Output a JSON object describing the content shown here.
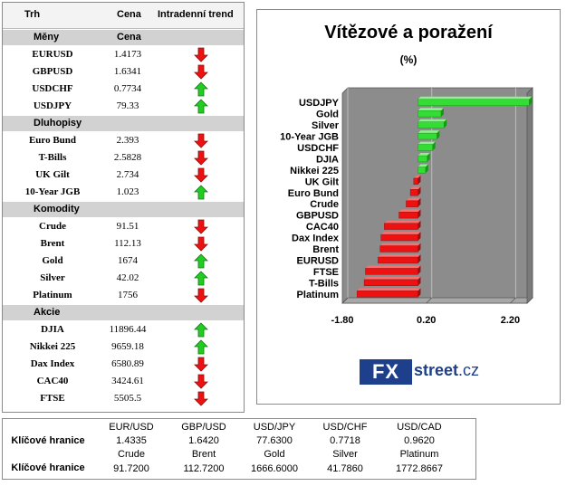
{
  "table": {
    "headers": {
      "market": "Trh",
      "price": "Cena",
      "trend": "Intradenní trend"
    },
    "sections": [
      {
        "title": "Měny",
        "price_header": "Cena",
        "rows": [
          {
            "name": "EURUSD",
            "value": "1.4173",
            "trend": "down"
          },
          {
            "name": "GBPUSD",
            "value": "1.6341",
            "trend": "down"
          },
          {
            "name": "USDCHF",
            "value": "0.7734",
            "trend": "up"
          },
          {
            "name": "USDJPY",
            "value": "79.33",
            "trend": "up"
          }
        ]
      },
      {
        "title": "Dluhopisy",
        "price_header": "",
        "rows": [
          {
            "name": "Euro Bund",
            "value": "2.393",
            "trend": "down"
          },
          {
            "name": "T-Bills",
            "value": "2.5828",
            "trend": "down"
          },
          {
            "name": "UK Gilt",
            "value": "2.734",
            "trend": "down"
          },
          {
            "name": "10-Year JGB",
            "value": "1.023",
            "trend": "up"
          }
        ]
      },
      {
        "title": "Komodity",
        "price_header": "",
        "rows": [
          {
            "name": "Crude",
            "value": "91.51",
            "trend": "down"
          },
          {
            "name": "Brent",
            "value": "112.13",
            "trend": "down"
          },
          {
            "name": "Gold",
            "value": "1674",
            "trend": "up"
          },
          {
            "name": "Silver",
            "value": "42.02",
            "trend": "up"
          },
          {
            "name": "Platinum",
            "value": "1756",
            "trend": "down"
          }
        ]
      },
      {
        "title": "Akcie",
        "price_header": "",
        "rows": [
          {
            "name": "DJIA",
            "value": "11896.44",
            "trend": "up"
          },
          {
            "name": "Nikkei 225",
            "value": "9659.18",
            "trend": "up"
          },
          {
            "name": "Dax Index",
            "value": "6580.89",
            "trend": "down"
          },
          {
            "name": "CAC40",
            "value": "3424.61",
            "trend": "down"
          },
          {
            "name": "FTSE",
            "value": "5505.5",
            "trend": "down"
          }
        ]
      }
    ]
  },
  "chart_data": {
    "type": "bar",
    "orientation": "horizontal",
    "title": "Vítězové a poražení",
    "subtitle": "(%)",
    "categories": [
      "USDJPY",
      "Gold",
      "Silver",
      "10-Year JGB",
      "USDCHF",
      "DJIA",
      "Nikkei 225",
      "UK Gilt",
      "Euro Bund",
      "Crude",
      "GBPUSD",
      "CAC40",
      "Dax Index",
      "Brent",
      "EURUSD",
      "FTSE",
      "T-Bills",
      "Platinum"
    ],
    "values": [
      2.65,
      0.55,
      0.62,
      0.45,
      0.35,
      0.22,
      0.18,
      -0.1,
      -0.18,
      -0.28,
      -0.45,
      -0.8,
      -0.88,
      -0.9,
      -0.95,
      -1.25,
      -1.28,
      -1.45
    ],
    "xlim": [
      -1.8,
      2.6
    ],
    "xticks": [
      "-1.80",
      "0.20",
      "2.20"
    ],
    "grid": true,
    "colors": {
      "positive": "#33dd33",
      "negative": "#ee1111",
      "plot_bg": "#8c8c8c",
      "floor": "#a8a8a8"
    }
  },
  "logo": {
    "fx": "FX",
    "street": "street",
    "tld": ".cz"
  },
  "colors": {
    "up_arrow": "#22cc22",
    "down_arrow": "#ee1111",
    "section_bg": "#d2d2d2"
  },
  "levels": {
    "row1_label": "Klíčové hranice",
    "row2_label": "Klíčové hranice",
    "fx": [
      {
        "name": "EUR/USD",
        "value": "1.4335"
      },
      {
        "name": "GBP/USD",
        "value": "1.6420"
      },
      {
        "name": "USD/JPY",
        "value": "77.6300"
      },
      {
        "name": "USD/CHF",
        "value": "0.7718"
      },
      {
        "name": "USD/CAD",
        "value": "0.9620"
      }
    ],
    "commodities": [
      {
        "name": "Crude",
        "value": "91.7200"
      },
      {
        "name": "Brent",
        "value": "112.7200"
      },
      {
        "name": "Gold",
        "value": "1666.6000"
      },
      {
        "name": "Silver",
        "value": "41.7860"
      },
      {
        "name": "Platinum",
        "value": "1772.8667"
      }
    ]
  }
}
